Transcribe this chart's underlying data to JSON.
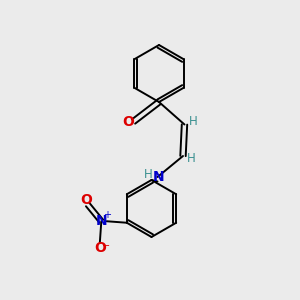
{
  "bg_color": "#ebebeb",
  "line_color": "#000000",
  "bond_lw": 1.4,
  "atom_colors": {
    "O": "#dd0000",
    "N_amine": "#0000cc",
    "N_nitro": "#0000cc",
    "O_nitro": "#dd0000",
    "H": "#3a9090",
    "C": "#000000"
  },
  "font_size_atom": 10,
  "font_size_H": 8.5,
  "font_size_charge": 7
}
